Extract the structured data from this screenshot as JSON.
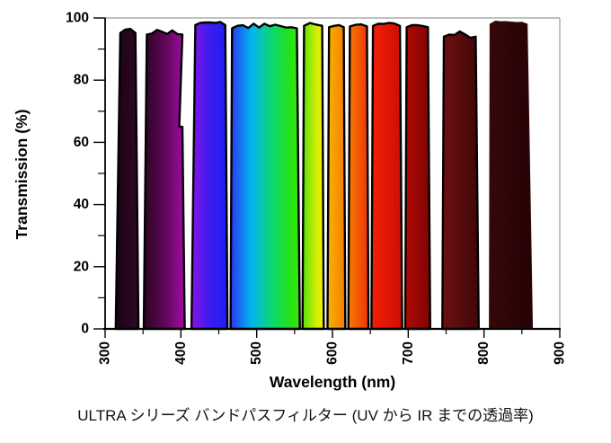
{
  "caption": "ULTRA シリーズ バンドパスフィルター (UV から IR までの透過率)",
  "style": {
    "band_outline": "#000000",
    "axis_color": "#000000",
    "frame_color": "#9a9a9a",
    "text_color": "#000000",
    "background": "#ffffff"
  },
  "chart_data": {
    "type": "area",
    "title": "",
    "xlabel": "Wavelength (nm)",
    "ylabel": "Transmission (%)",
    "xlim": [
      300,
      900
    ],
    "ylim": [
      0,
      100
    ],
    "grid": false,
    "legend": false,
    "x_major_ticks": [
      300,
      400,
      500,
      600,
      700,
      800,
      900
    ],
    "x_minor_ticks": [
      350,
      450,
      550,
      650,
      750,
      850
    ],
    "y_major_ticks": [
      0,
      20,
      40,
      60,
      80,
      100
    ],
    "y_minor_ticks": [
      10,
      30,
      50,
      70,
      90
    ],
    "bands": [
      {
        "name": "uv-bandpass-320-340",
        "x_start": 314,
        "x_end": 344,
        "top_inset": [
          6,
          4
        ],
        "peak": 96.5,
        "rough": 1.2,
        "outline": true,
        "colors": [
          {
            "o": 0,
            "c": "#1a0213"
          },
          {
            "o": 1,
            "c": "#2f0827"
          }
        ]
      },
      {
        "name": "violet-bandpass-355-400",
        "x_start": 351,
        "x_end": 405,
        "top_inset": [
          4,
          3
        ],
        "peak": 96.3,
        "rough": 1.8,
        "outline": true,
        "notch": {
          "pct": 65,
          "depth": 3.5
        },
        "colors": [
          {
            "o": 0,
            "c": "#2b0520"
          },
          {
            "o": 0.55,
            "c": "#62075c"
          },
          {
            "o": 1,
            "c": "#a30ba6"
          }
        ]
      },
      {
        "name": "blue-bandpass-420-460",
        "x_start": 414,
        "x_end": 461.5,
        "top_inset": [
          5,
          3
        ],
        "peak": 98.8,
        "rough": 0.7,
        "outline": true,
        "colors": [
          {
            "o": 0,
            "c": "#8a14e4"
          },
          {
            "o": 0.5,
            "c": "#3c1cf0"
          },
          {
            "o": 1,
            "c": "#1b20f4"
          }
        ]
      },
      {
        "name": "cyan-green-bandpass-470-550",
        "x_start": 465.5,
        "x_end": 557,
        "top_inset": [
          2,
          4
        ],
        "peak": 98.2,
        "rough": 1.6,
        "outline": true,
        "colors": [
          {
            "o": 0,
            "c": "#2c35f1"
          },
          {
            "o": 0.3,
            "c": "#00b5ef"
          },
          {
            "o": 0.62,
            "c": "#0cd969"
          },
          {
            "o": 0.85,
            "c": "#22e318"
          },
          {
            "o": 1,
            "c": "#3de70c"
          }
        ]
      },
      {
        "name": "green-yellow-bandpass-560-590",
        "x_start": 560.5,
        "x_end": 588.5,
        "top_inset": [
          2,
          2
        ],
        "peak": 98.6,
        "rough": 0.8,
        "outline": true,
        "colors": [
          {
            "o": 0,
            "c": "#52e20b"
          },
          {
            "o": 0.6,
            "c": "#c8ec05"
          },
          {
            "o": 1,
            "c": "#f6f104"
          }
        ]
      },
      {
        "name": "orange-bandpass-595-615",
        "x_start": 593.5,
        "x_end": 617,
        "top_inset": [
          2,
          2
        ],
        "peak": 98.2,
        "rough": 0.9,
        "outline": true,
        "colors": [
          {
            "o": 0,
            "c": "#f9b203"
          },
          {
            "o": 1,
            "c": "#f57d02"
          }
        ]
      },
      {
        "name": "orange-red-bandpass-620-645",
        "x_start": 621,
        "x_end": 647.5,
        "top_inset": [
          2,
          2
        ],
        "peak": 98.4,
        "rough": 0.8,
        "outline": true,
        "colors": [
          {
            "o": 0,
            "c": "#f67c02"
          },
          {
            "o": 1,
            "c": "#ef3306"
          }
        ]
      },
      {
        "name": "red-bandpass-650-690",
        "x_start": 651.5,
        "x_end": 692,
        "top_inset": [
          2,
          3
        ],
        "peak": 98.5,
        "rough": 0.7,
        "outline": true,
        "colors": [
          {
            "o": 0,
            "c": "#f32106"
          },
          {
            "o": 1,
            "c": "#cd0d04"
          }
        ]
      },
      {
        "name": "dark-red-bandpass-700-730",
        "x_start": 696,
        "x_end": 729,
        "top_inset": [
          2,
          3
        ],
        "peak": 98.2,
        "rough": 0.9,
        "outline": true,
        "colors": [
          {
            "o": 0,
            "c": "#b20a04"
          },
          {
            "o": 1,
            "c": "#7d0403"
          }
        ]
      },
      {
        "name": "deep-red-bandpass-745-790",
        "x_start": 745,
        "x_end": 793,
        "top_inset": [
          2,
          4
        ],
        "peak": 95.8,
        "rough": 2.2,
        "outline": true,
        "colors": [
          {
            "o": 0,
            "c": "#6e1012"
          },
          {
            "o": 1,
            "c": "#400707"
          }
        ]
      },
      {
        "name": "nir-bandpass-805-865",
        "x_start": 807,
        "x_end": 864,
        "top_inset": [
          1,
          7
        ],
        "peak": 99,
        "rough": 0.5,
        "outline": false,
        "colors": [
          {
            "o": 0,
            "c": "#360708"
          },
          {
            "o": 1,
            "c": "#240305"
          }
        ]
      }
    ]
  }
}
